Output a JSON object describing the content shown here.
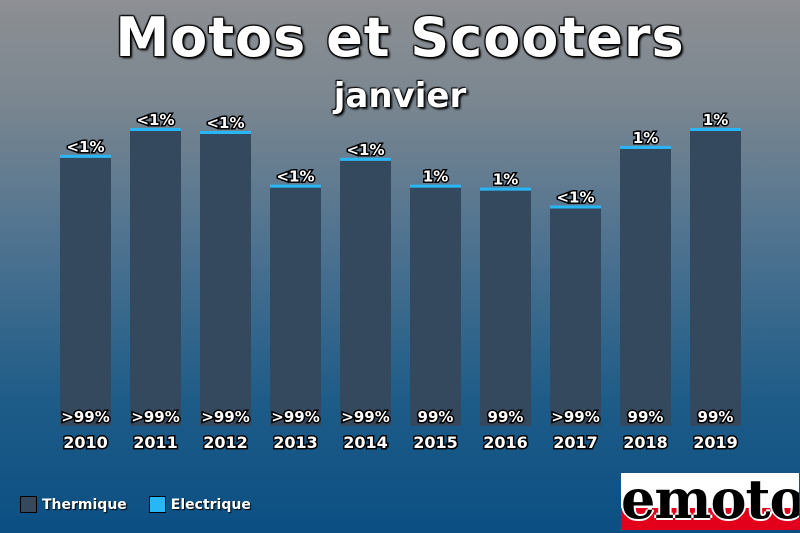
{
  "title": "Motos et Scooters",
  "subtitle": "janvier",
  "legend": [
    {
      "label": "Thermique",
      "color": "#34495e"
    },
    {
      "label": "Electrique",
      "color": "#29b6f6"
    }
  ],
  "logo": "emoto",
  "chart_data": {
    "type": "bar",
    "stacked": true,
    "title": "Motos et Scooters",
    "subtitle": "janvier",
    "categories": [
      "2010",
      "2011",
      "2012",
      "2013",
      "2014",
      "2015",
      "2016",
      "2017",
      "2018",
      "2019"
    ],
    "series": [
      {
        "name": "Thermique",
        "color": "#34495e",
        "labels": [
          ">99%",
          ">99%",
          ">99%",
          ">99%",
          ">99%",
          "99%",
          "99%",
          ">99%",
          "99%",
          "99%"
        ],
        "relative_total": [
          0.91,
          1.0,
          0.99,
          0.81,
          0.9,
          0.81,
          0.8,
          0.74,
          0.94,
          1.0
        ]
      },
      {
        "name": "Electrique",
        "color": "#29b6f6",
        "labels": [
          "<1%",
          "<1%",
          "<1%",
          "<1%",
          "<1%",
          "1%",
          "1%",
          "<1%",
          "1%",
          "1%"
        ]
      }
    ],
    "legend_position": "bottom-left",
    "grid": false
  }
}
